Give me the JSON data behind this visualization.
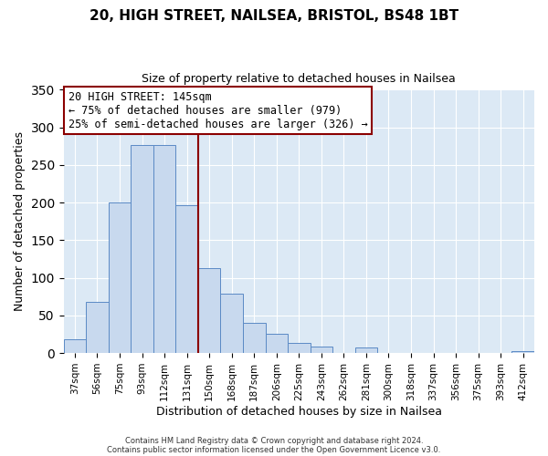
{
  "title": "20, HIGH STREET, NAILSEA, BRISTOL, BS48 1BT",
  "subtitle": "Size of property relative to detached houses in Nailsea",
  "xlabel": "Distribution of detached houses by size in Nailsea",
  "ylabel": "Number of detached properties",
  "bar_labels": [
    "37sqm",
    "56sqm",
    "75sqm",
    "93sqm",
    "112sqm",
    "131sqm",
    "150sqm",
    "168sqm",
    "187sqm",
    "206sqm",
    "225sqm",
    "243sqm",
    "262sqm",
    "281sqm",
    "300sqm",
    "318sqm",
    "337sqm",
    "356sqm",
    "375sqm",
    "393sqm",
    "412sqm"
  ],
  "bar_values": [
    18,
    68,
    200,
    277,
    277,
    196,
    113,
    79,
    40,
    25,
    14,
    8,
    0,
    7,
    0,
    0,
    0,
    0,
    0,
    0,
    2
  ],
  "bar_color": "#c8d9ee",
  "bar_edgecolor": "#5b8ac5",
  "ylim": [
    0,
    350
  ],
  "vline_x": 5.5,
  "vline_color": "#8b0000",
  "annotation_title": "20 HIGH STREET: 145sqm",
  "annotation_line1": "← 75% of detached houses are smaller (979)",
  "annotation_line2": "25% of semi-detached houses are larger (326) →",
  "annotation_box_facecolor": "#ffffff",
  "annotation_box_edgecolor": "#8b0000",
  "footer1": "Contains HM Land Registry data © Crown copyright and database right 2024.",
  "footer2": "Contains public sector information licensed under the Open Government Licence v3.0.",
  "background_color": "#ffffff",
  "plot_background_color": "#dce9f5",
  "grid_color": "#ffffff",
  "title_fontsize": 11,
  "subtitle_fontsize": 9
}
